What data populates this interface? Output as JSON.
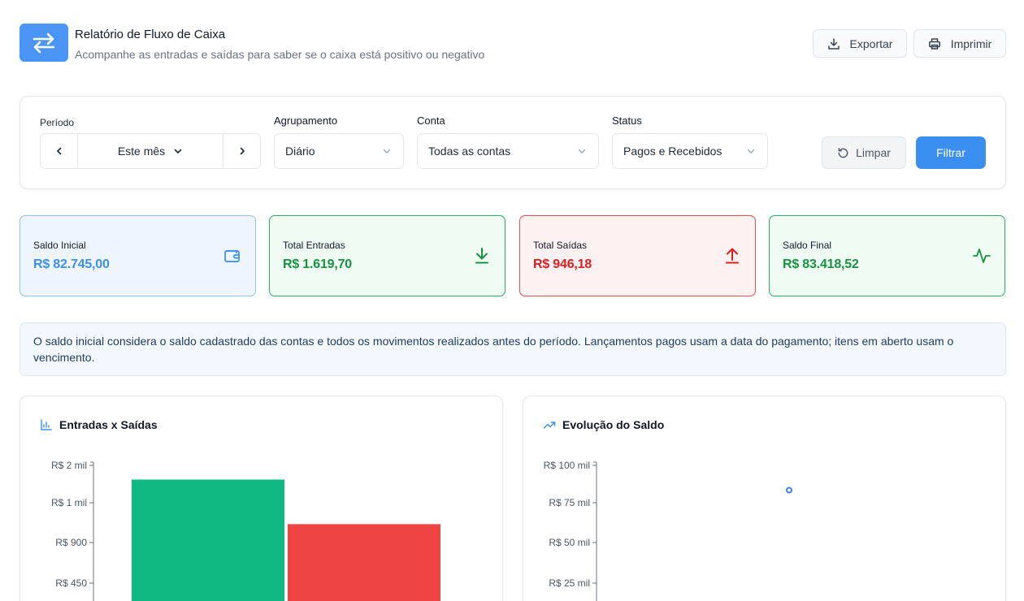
{
  "header": {
    "title": "Relatório de Fluxo de Caixa",
    "subtitle": "Acompanhe as entradas e saídas para saber se o caixa está positivo ou negativo",
    "export_label": "Exportar",
    "print_label": "Imprimir"
  },
  "filters": {
    "period_label": "Período",
    "period_value": "Este mês",
    "grouping_label": "Agrupamento",
    "grouping_value": "Diário",
    "account_label": "Conta",
    "account_value": "Todas as contas",
    "status_label": "Status",
    "status_value": "Pagos e Recebidos",
    "clear_label": "Limpar",
    "filter_label": "Filtrar"
  },
  "summary": [
    {
      "label": "Saldo Inicial",
      "value": "R$ 82.745,00",
      "icon": "wallet-icon",
      "color": "#3b8ff0"
    },
    {
      "label": "Total Entradas",
      "value": "R$ 1.619,70",
      "icon": "arrow-down-icon",
      "color": "#15943f"
    },
    {
      "label": "Total Saídas",
      "value": "R$ 946,18",
      "icon": "arrow-up-icon",
      "color": "#dc1f1f"
    },
    {
      "label": "Saldo Final",
      "value": "R$ 83.418,52",
      "icon": "activity-icon",
      "color": "#15943f"
    }
  ],
  "info_text": "O saldo inicial considera o saldo cadastrado das contas e todos os movimentos realizados antes do período. Lançamentos pagos usam a data do pagamento; itens em aberto usam o vencimento.",
  "chart_data": [
    {
      "type": "bar",
      "title": "Entradas x Saídas",
      "y_ticks": [
        "R$ 2 mil",
        "R$ 1 mil",
        "R$ 900",
        "R$ 450"
      ],
      "series": [
        {
          "values": [
            1619.7
          ],
          "color": "#10b981"
        },
        {
          "values": [
            946.18
          ],
          "color": "#ef4444"
        }
      ]
    },
    {
      "type": "line",
      "title": "Evolução do Saldo",
      "y_ticks": [
        "R$ 100 mil",
        "R$ 75 mil",
        "R$ 50 mil",
        "R$ 25 mil"
      ],
      "series": [
        {
          "values": [
            83418.52
          ],
          "color": "#3b82f6"
        }
      ]
    }
  ]
}
